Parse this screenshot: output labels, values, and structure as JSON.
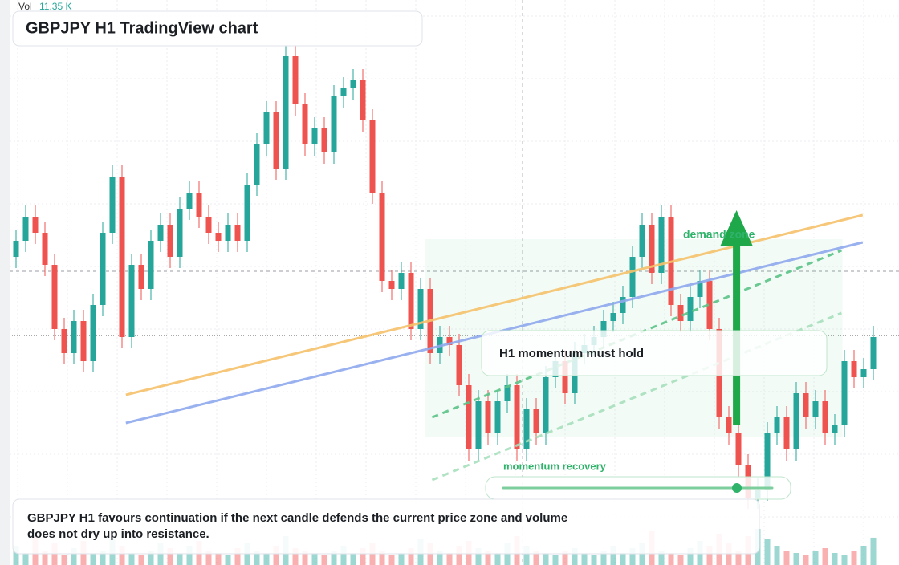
{
  "chart_data": {
    "type": "candlestick",
    "title": "GBPJPY H1 TradingView chart",
    "volume_title": "Vol",
    "volume_value_label": "11.35 K",
    "caption": "GBPJPY H1 favours continuation if the next candle defends the current price zone and volume does not dry up into resistance.",
    "annotations": {
      "zone": "demand zone",
      "note": "H1 momentum must hold",
      "slider": "momentum recovery"
    },
    "up_color": "#26a69a",
    "down_color": "#ef5350",
    "ylim": [
      0,
      704
    ],
    "vlim": [
      0,
      25
    ],
    "open": [
      384,
      404,
      434,
      414,
      374,
      294,
      264,
      304,
      254,
      324,
      414,
      484,
      284,
      374,
      344,
      404,
      424,
      384,
      444,
      464,
      434,
      414,
      404,
      424,
      404,
      474,
      524,
      564,
      494,
      634,
      574,
      524,
      544,
      514,
      584,
      594,
      604,
      554,
      464,
      354,
      344,
      364,
      294,
      344,
      264,
      284,
      274,
      224,
      144,
      204,
      164,
      204,
      224,
      144,
      194,
      164,
      234,
      254,
      214,
      264,
      274,
      284,
      304,
      314,
      334,
      384,
      424,
      364,
      434,
      324,
      304,
      334,
      354,
      294,
      184,
      164,
      124,
      84,
      94,
      164,
      184,
      144,
      214,
      184,
      204,
      164,
      174,
      254,
      234,
      244
    ],
    "high": [
      418,
      448,
      448,
      428,
      388,
      308,
      318,
      318,
      338,
      428,
      498,
      498,
      388,
      388,
      418,
      438,
      438,
      458,
      478,
      478,
      448,
      428,
      438,
      438,
      488,
      538,
      578,
      578,
      648,
      648,
      588,
      558,
      558,
      598,
      608,
      618,
      618,
      568,
      478,
      368,
      378,
      378,
      358,
      358,
      298,
      298,
      288,
      238,
      218,
      218,
      218,
      238,
      238,
      208,
      208,
      248,
      268,
      268,
      278,
      288,
      298,
      318,
      328,
      348,
      398,
      438,
      438,
      448,
      448,
      338,
      348,
      368,
      368,
      308,
      198,
      178,
      138,
      108,
      178,
      198,
      198,
      228,
      228,
      218,
      218,
      188,
      268,
      268,
      258,
      298
    ],
    "low": [
      370,
      390,
      400,
      360,
      280,
      250,
      250,
      240,
      240,
      310,
      400,
      270,
      270,
      330,
      330,
      390,
      370,
      370,
      430,
      420,
      400,
      390,
      390,
      390,
      390,
      460,
      510,
      480,
      480,
      560,
      510,
      510,
      500,
      500,
      570,
      580,
      540,
      450,
      340,
      330,
      330,
      280,
      280,
      250,
      250,
      260,
      210,
      130,
      130,
      150,
      150,
      190,
      130,
      130,
      150,
      150,
      220,
      200,
      200,
      250,
      260,
      270,
      290,
      300,
      320,
      370,
      350,
      350,
      310,
      290,
      290,
      320,
      280,
      170,
      150,
      110,
      70,
      70,
      80,
      150,
      130,
      130,
      170,
      170,
      150,
      150,
      160,
      220,
      220,
      230
    ],
    "close": [
      404,
      434,
      414,
      374,
      294,
      264,
      304,
      254,
      324,
      414,
      484,
      284,
      374,
      344,
      404,
      424,
      384,
      444,
      464,
      434,
      414,
      404,
      424,
      404,
      474,
      524,
      564,
      494,
      634,
      574,
      524,
      544,
      514,
      584,
      594,
      604,
      554,
      464,
      354,
      344,
      364,
      294,
      344,
      264,
      284,
      274,
      224,
      144,
      204,
      164,
      204,
      224,
      144,
      194,
      164,
      234,
      254,
      214,
      264,
      274,
      284,
      304,
      314,
      334,
      384,
      424,
      364,
      434,
      324,
      304,
      334,
      354,
      294,
      184,
      164,
      124,
      84,
      94,
      164,
      184,
      144,
      214,
      184,
      204,
      164,
      174,
      254,
      234,
      244,
      284
    ],
    "volume": [
      8,
      5,
      12,
      6,
      9,
      4,
      7,
      10,
      5,
      6,
      11,
      8,
      5,
      4,
      6,
      9,
      7,
      5,
      8,
      10,
      6,
      5,
      4,
      7,
      9,
      6,
      5,
      8,
      12,
      7,
      6,
      5,
      4,
      6,
      8,
      5,
      7,
      9,
      6,
      4,
      5,
      7,
      11,
      9,
      6,
      5,
      8,
      10,
      7,
      6,
      5,
      9,
      12,
      8,
      6,
      5,
      4,
      6,
      7,
      5,
      4,
      6,
      8,
      5,
      7,
      9,
      14,
      6,
      5,
      4,
      7,
      10,
      8,
      13,
      9,
      6,
      12,
      15,
      11,
      8,
      6,
      5,
      4,
      6,
      7,
      5,
      4,
      6,
      8,
      11.35
    ],
    "drawings": [
      {
        "color": "#f6c26b",
        "from": [
          11.4,
          212
        ],
        "to": [
          87.9,
          436
        ]
      },
      {
        "color": "#8fa9ee",
        "from": [
          11.4,
          177
        ],
        "to": [
          87.9,
          402
        ]
      },
      {
        "color": "#5cc488",
        "dashed": true,
        "from": [
          43.2,
          184
        ],
        "to": [
          85.7,
          392
        ]
      },
      {
        "color": "#a8e0bd",
        "dashed": true,
        "from": [
          43.2,
          106
        ],
        "to": [
          85.7,
          314
        ]
      }
    ],
    "zone": {
      "from": [
        42.5,
        406
      ],
      "to": [
        85.8,
        159
      ]
    },
    "arrow": {
      "color": "#1ea84a",
      "from": [
        74.8,
        174
      ],
      "to": [
        74.8,
        442
      ]
    }
  }
}
